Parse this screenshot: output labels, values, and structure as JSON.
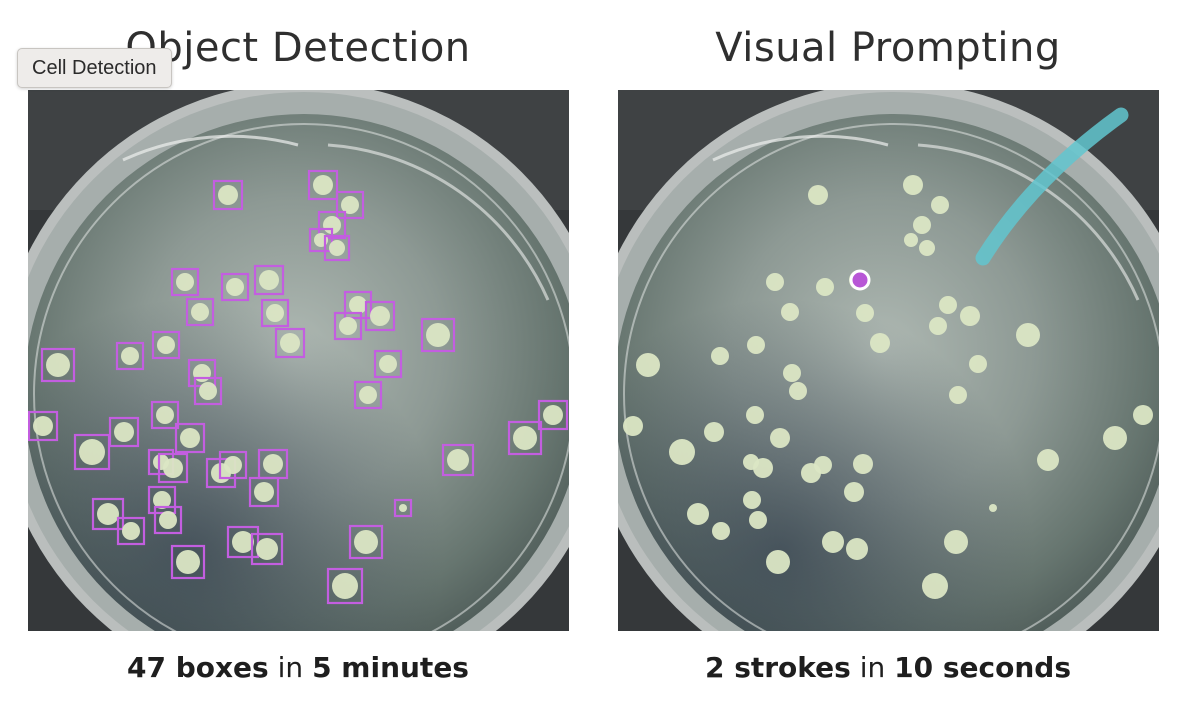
{
  "tooltip": {
    "text": "Cell Detection"
  },
  "left_panel": {
    "title": "Object Detection",
    "caption": {
      "count": "47 boxes",
      "connector": "in",
      "duration": "5 minutes"
    }
  },
  "right_panel": {
    "title": "Visual Prompting",
    "caption": {
      "count": "2 strokes",
      "connector": "in",
      "duration": "10 seconds"
    }
  },
  "colors": {
    "box": "#c35ee0",
    "stroke": "#62c6cf",
    "dot": "#b857d6",
    "colony": "#dbe6c4"
  }
}
